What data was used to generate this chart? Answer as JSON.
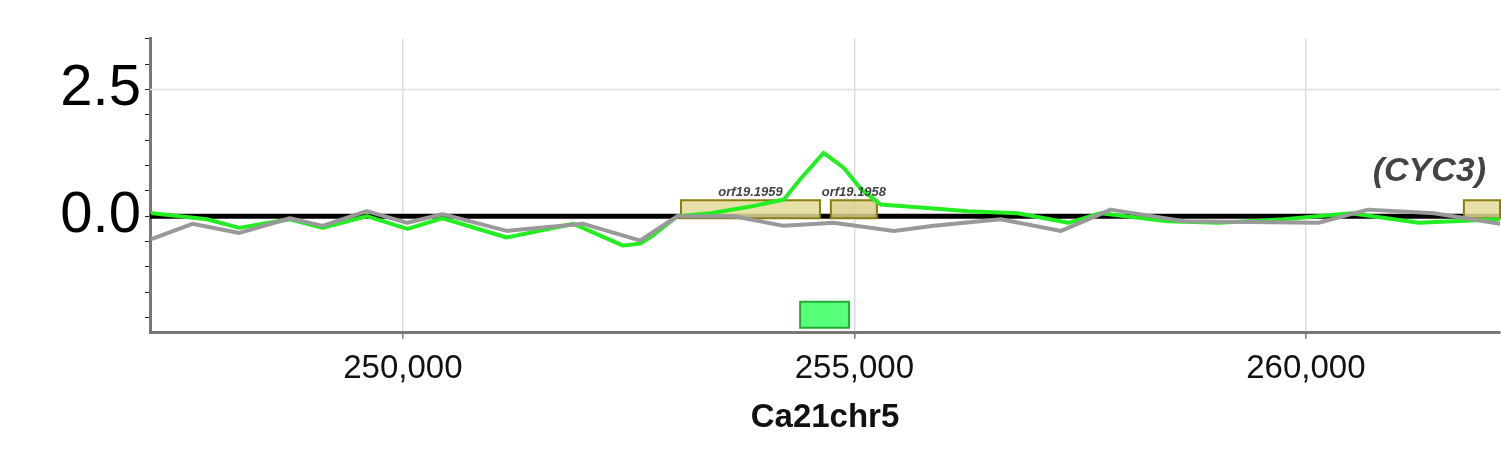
{
  "chart_data": {
    "type": "line",
    "xlabel": "Ca21chr5",
    "xlim": [
      247200,
      262150
    ],
    "xticks": [
      {
        "value": 250000,
        "label": "250,000"
      },
      {
        "value": 255000,
        "label": "255,000"
      },
      {
        "value": 260000,
        "label": "260,000"
      }
    ],
    "ylim": [
      -2.3,
      3.5
    ],
    "yticks": [
      {
        "value": -2,
        "label": null
      },
      {
        "value": -1.5,
        "label": null
      },
      {
        "value": -1,
        "label": null
      },
      {
        "value": -0.5,
        "label": null
      },
      {
        "value": 0,
        "label": "0.0"
      },
      {
        "value": 0.5,
        "label": null
      },
      {
        "value": 1,
        "label": null
      },
      {
        "value": 1.5,
        "label": null
      },
      {
        "value": 2,
        "label": null
      },
      {
        "value": 2.5,
        "label": "2.5"
      },
      {
        "value": 3,
        "label": null
      },
      {
        "value": 3.5,
        "label": null
      }
    ],
    "grid": "x",
    "legend": false,
    "marker": "none",
    "line_style": "solid",
    "series": [
      {
        "color": "#999999",
        "x": [
          247230,
          247670,
          248190,
          248750,
          249110,
          249600,
          250050,
          250440,
          251150,
          252000,
          252630,
          253040,
          253660,
          254220,
          254770,
          255440,
          255880,
          256620,
          257290,
          257840,
          258650,
          260140,
          260690,
          261420,
          262150
        ],
        "values": [
          -0.44,
          -0.15,
          -0.33,
          -0.04,
          -0.19,
          0.1,
          -0.13,
          0.04,
          -0.29,
          -0.15,
          -0.48,
          0,
          0,
          -0.19,
          -0.13,
          -0.29,
          -0.19,
          -0.06,
          -0.29,
          0.13,
          -0.1,
          -0.13,
          0.13,
          0.06,
          -0.15
        ]
      },
      {
        "color": "#22ee22",
        "x": [
          247230,
          247830,
          248190,
          248750,
          249110,
          249600,
          250050,
          250440,
          251150,
          251890,
          252440,
          252630,
          252770,
          253040,
          253410,
          253850,
          254220,
          254400,
          254660,
          254880,
          255070,
          255290,
          255880,
          256260,
          256810,
          257370,
          257730,
          258470,
          259030,
          259760,
          260500,
          261250,
          262150
        ],
        "values": [
          0.06,
          -0.06,
          -0.23,
          -0.06,
          -0.23,
          0,
          -0.25,
          -0.04,
          -0.42,
          -0.15,
          -0.58,
          -0.54,
          -0.38,
          0,
          0.06,
          0.19,
          0.33,
          0.73,
          1.25,
          0.96,
          0.54,
          0.23,
          0.15,
          0.1,
          0.06,
          -0.13,
          0.06,
          -0.1,
          -0.13,
          -0.06,
          0.06,
          -0.13,
          -0.06
        ]
      }
    ],
    "ref_lines": [
      {
        "axis": "y",
        "value": 0,
        "color": "#000000"
      },
      {
        "axis": "y",
        "value": 2.5,
        "color": "#dddddd"
      }
    ],
    "bands": [
      {
        "axis": "x",
        "from": 253080,
        "to": 254620,
        "label": "orf19.1959",
        "color": "#e3dc9a"
      },
      {
        "axis": "x",
        "from": 254740,
        "to": 255250,
        "label": "orf19.1958",
        "color": "#d9d08a"
      },
      {
        "axis": "x",
        "from": 261750,
        "to": 262150,
        "label": "(CYC3)",
        "color": "#e3dc9a"
      },
      {
        "axis": "x",
        "from": 254400,
        "to": 254940,
        "color": "#55ff77"
      }
    ]
  }
}
